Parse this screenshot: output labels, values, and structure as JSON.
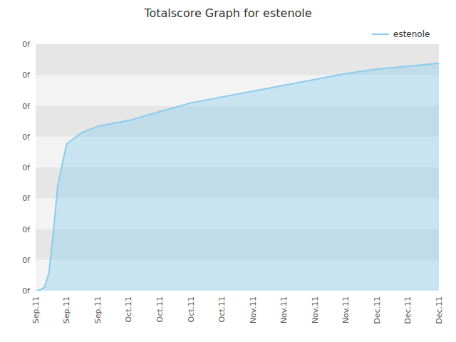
{
  "chart_data": {
    "type": "area",
    "title": "Totalscore Graph for estenole",
    "x": [
      0,
      2,
      4,
      6,
      8,
      10,
      14,
      21,
      28,
      42,
      56,
      70,
      84,
      98,
      112,
      126,
      140,
      154,
      168,
      182
    ],
    "series": [
      {
        "name": "estenole",
        "color": "#88ccee",
        "values": [
          0.0,
          0.003,
          0.012,
          0.06,
          0.2,
          0.36,
          0.5,
          0.54,
          0.56,
          0.58,
          0.61,
          0.64,
          0.66,
          0.68,
          0.7,
          0.72,
          0.74,
          0.755,
          0.765,
          0.775
        ]
      }
    ],
    "xlim": [
      0,
      182
    ],
    "xticks": [
      {
        "value": 0,
        "label": "Sep.11"
      },
      {
        "value": 14,
        "label": "Sep.11"
      },
      {
        "value": 28,
        "label": "Sep.11"
      },
      {
        "value": 42,
        "label": "Oct.11"
      },
      {
        "value": 56,
        "label": "Oct.11"
      },
      {
        "value": 70,
        "label": "Oct.11"
      },
      {
        "value": 84,
        "label": "Oct.11"
      },
      {
        "value": 98,
        "label": "Nov.11"
      },
      {
        "value": 112,
        "label": "Nov.11"
      },
      {
        "value": 126,
        "label": "Nov.11"
      },
      {
        "value": 140,
        "label": "Nov.11"
      },
      {
        "value": 154,
        "label": "Dec.11"
      },
      {
        "value": 168,
        "label": "Dec.11"
      },
      {
        "value": 182,
        "label": "Dec.11"
      }
    ],
    "ylim": [
      0,
      0.84
    ],
    "yticks": [
      {
        "value": 0,
        "label": "0f"
      },
      {
        "value": 0.105,
        "label": "0f"
      },
      {
        "value": 0.21,
        "label": "0f"
      },
      {
        "value": 0.315,
        "label": "0f"
      },
      {
        "value": 0.42,
        "label": "0f"
      },
      {
        "value": 0.525,
        "label": "0f"
      },
      {
        "value": 0.63,
        "label": "0f"
      },
      {
        "value": 0.735,
        "label": "0f"
      },
      {
        "value": 0.84,
        "label": "0f"
      }
    ],
    "grid": false,
    "legend": "top-right"
  }
}
